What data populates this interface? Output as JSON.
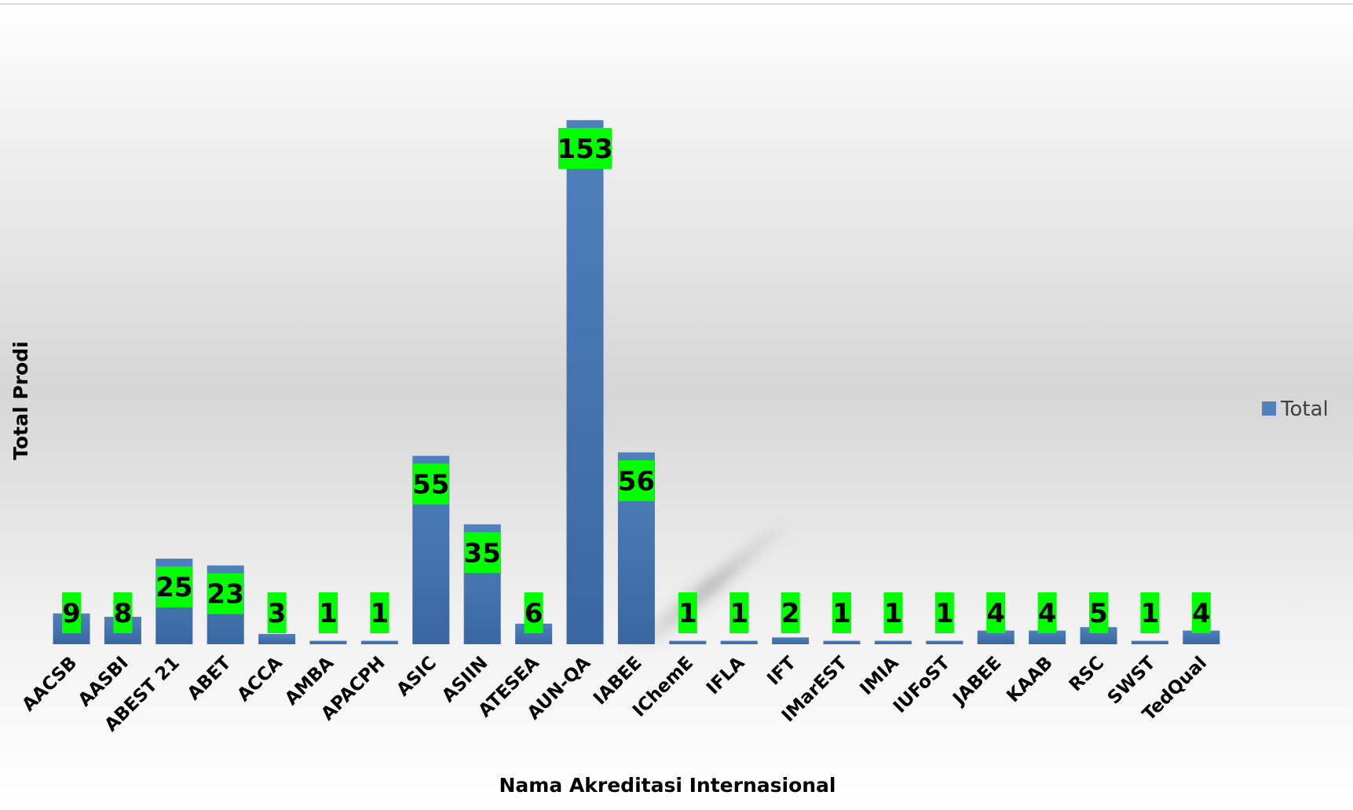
{
  "chart_data": {
    "type": "bar",
    "categories": [
      "AACSB",
      "AASBI",
      "ABEST 21",
      "ABET",
      "ACCA",
      "AMBA",
      "APACPH",
      "ASIC",
      "ASIIN",
      "ATESEA",
      "AUN-QA",
      "IABEE",
      "IChemE",
      "IFLA",
      "IFT",
      "IMarEST",
      "IMIA",
      "IUFoST",
      "JABEE",
      "KAAB",
      "RSC",
      "SWST",
      "TedQual"
    ],
    "series": [
      {
        "name": "Total",
        "values": [
          9,
          8,
          25,
          23,
          3,
          1,
          1,
          55,
          35,
          6,
          153,
          56,
          1,
          1,
          2,
          1,
          1,
          1,
          4,
          4,
          5,
          1,
          4
        ]
      }
    ],
    "xlabel": "Nama Akreditasi Internasional",
    "ylabel": "Total Prodi",
    "ylim": [
      0,
      170
    ],
    "grid": false,
    "legend": "right",
    "colors": {
      "bar_top": "#4f81bd",
      "bar_bottom": "#3a67a1",
      "data_label_bg": "#00ff00"
    }
  }
}
